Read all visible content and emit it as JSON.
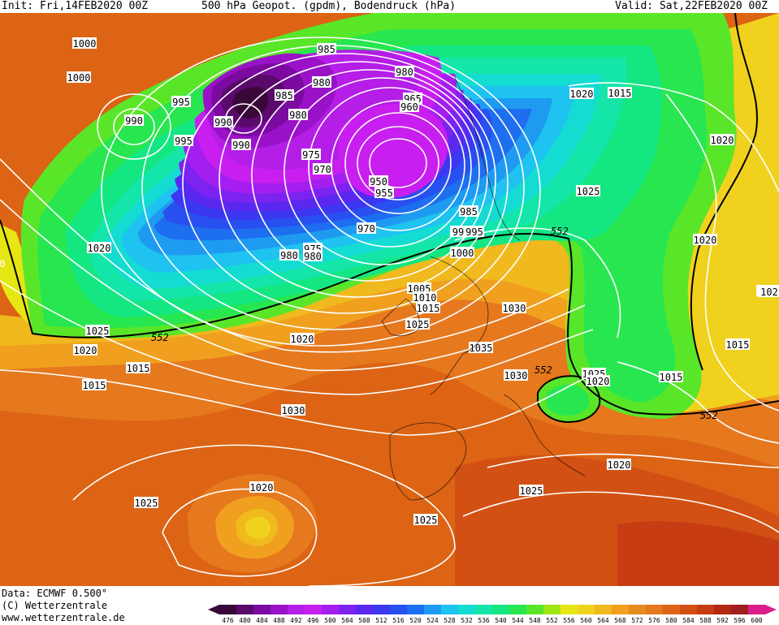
{
  "header": {
    "init": "Init: Fri,14FEB2020 00Z",
    "title": "500 hPa Geopot. (gpdm), Bodendruck (hPa)",
    "valid": "Valid: Sat,22FEB2020 00Z"
  },
  "footer": {
    "data": "Data: ECMWF  0.500°",
    "copyright": "(C) Wetterzentrale",
    "url": "www.wetterzentrale.de"
  },
  "legend": {
    "values": [
      "476",
      "480",
      "484",
      "488",
      "492",
      "496",
      "500",
      "504",
      "508",
      "512",
      "516",
      "520",
      "524",
      "528",
      "532",
      "536",
      "540",
      "544",
      "548",
      "552",
      "556",
      "560",
      "564",
      "568",
      "572",
      "576",
      "580",
      "584",
      "588",
      "592",
      "596",
      "600"
    ],
    "colors": [
      "#3a0838",
      "#5a0a6a",
      "#7a0aa0",
      "#9a12c8",
      "#b41ee6",
      "#c81ef0",
      "#a51ef0",
      "#7d23f0",
      "#5a28f0",
      "#3c37f0",
      "#2850f0",
      "#1e6ef0",
      "#1e9bf0",
      "#1ec3f0",
      "#14dcd2",
      "#14e6aa",
      "#14e682",
      "#28e650",
      "#5ae628",
      "#a0e614",
      "#e6e614",
      "#f0d21e",
      "#f0b91e",
      "#f0a01e",
      "#e68c1e",
      "#e6781e",
      "#dc6414",
      "#d25014",
      "#c83c14",
      "#b42814",
      "#a01e1e",
      "#dc1e8c"
    ]
  },
  "map": {
    "contour_label_color": "#000000",
    "isoline_color": "#ffffff",
    "geopotential_labels": [
      "552",
      "552",
      "552",
      "552",
      "552"
    ],
    "pressure_labels": [
      "1000",
      "1000",
      "995",
      "990",
      "995",
      "990",
      "990",
      "985",
      "985",
      "980",
      "980",
      "980",
      "980",
      "965",
      "960",
      "975",
      "970",
      "950",
      "955",
      "970",
      "985",
      "995",
      "99",
      "1000",
      "975",
      "980",
      "1020",
      "1015",
      "1020",
      "1025",
      "1020",
      "1020",
      "1025",
      "1020",
      "1015",
      "1015",
      "1005",
      "1010",
      "1015",
      "1025",
      "1020",
      "1030",
      "1035",
      "1030",
      "1025",
      "1020",
      "1015",
      "1015",
      "1030",
      "1020",
      "1025",
      "1020",
      "1025",
      "1025",
      "1020",
      "1025",
      "1020",
      "1015",
      "10",
      "102",
      "0"
    ]
  }
}
